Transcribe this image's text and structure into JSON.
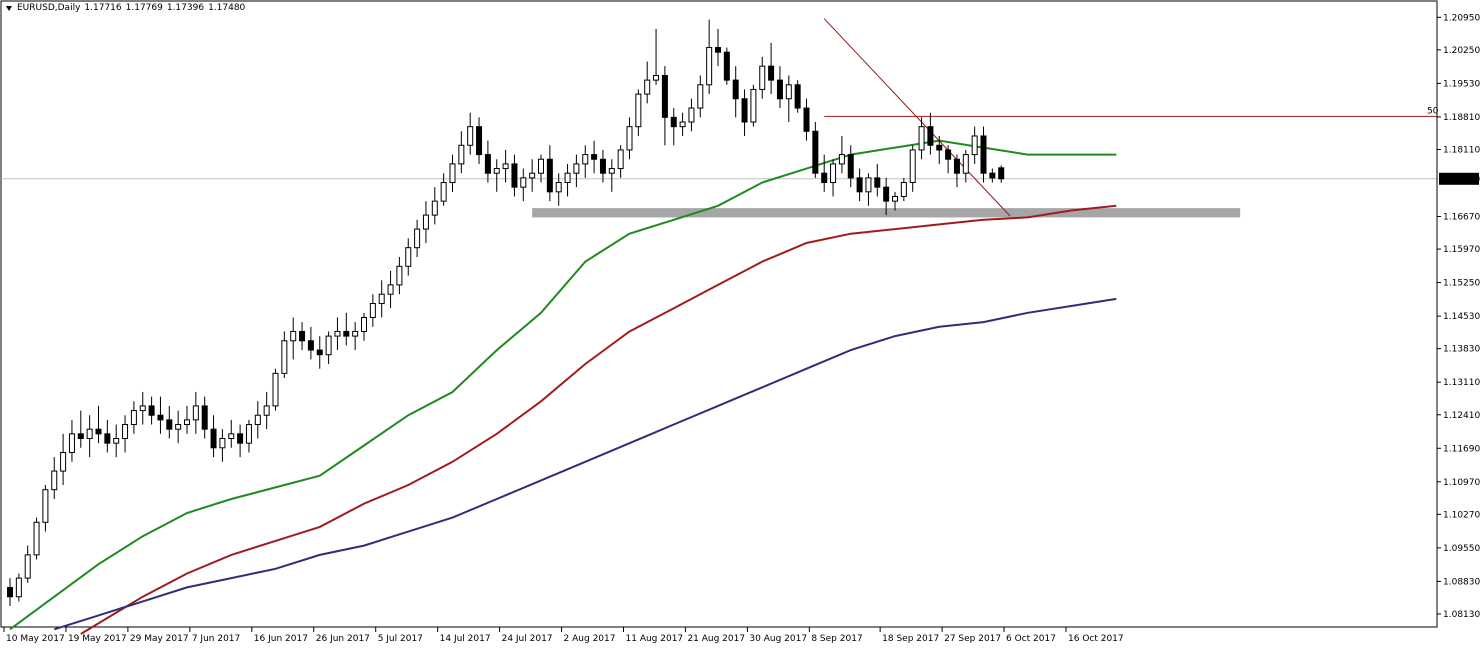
{
  "header": {
    "symbol": "EURUSD,Daily",
    "open": "1.17716",
    "high": "1.17769",
    "low": "1.17396",
    "close": "1.17480"
  },
  "current_price_label": "1.17480",
  "fib_label": "50",
  "chart_data": {
    "type": "candlestick",
    "title": "EURUSD,Daily",
    "xlabel": "",
    "ylabel": "",
    "ylim": [
      1.0785,
      1.213
    ],
    "y_ticks": [
      "1.20950",
      "1.20250",
      "1.19530",
      "1.18810",
      "1.18110",
      "1.17480",
      "1.16670",
      "1.15970",
      "1.15250",
      "1.14530",
      "1.13830",
      "1.13110",
      "1.12410",
      "1.11690",
      "1.10970",
      "1.10270",
      "1.09550",
      "1.08830",
      "1.08130"
    ],
    "x_ticks": [
      "10 May 2017",
      "19 May 2017",
      "29 May 2017",
      "7 Jun 2017",
      "16 Jun 2017",
      "26 Jun 2017",
      "5 Jul 2017",
      "14 Jul 2017",
      "24 Jul 2017",
      "2 Aug 2017",
      "11 Aug 2017",
      "21 Aug 2017",
      "30 Aug 2017",
      "8 Sep 2017",
      "18 Sep 2017",
      "27 Sep 2017",
      "6 Oct 2017",
      "16 Oct 2017"
    ],
    "x_tick_index": [
      0,
      7,
      14,
      21,
      28,
      35,
      42,
      49,
      56,
      63,
      70,
      77,
      84,
      91,
      99,
      106,
      113,
      120
    ],
    "colors": {
      "bull": "#ffffff",
      "bear": "#000000",
      "ma_fast": "#1f8a1f",
      "ma_mid": "#a01c1c",
      "ma_slow": "#2e2e7a",
      "fib_line": "#a01c1c",
      "support_zone": "#a6a6a6",
      "trend_line": "#8b1a1a",
      "price_line": "#c0c0c0"
    },
    "support_zone": {
      "from_index": 59,
      "to_index": 139,
      "low": 1.1665,
      "high": 1.1685
    },
    "fib_level": {
      "from_index": 92,
      "price": 1.1882
    },
    "trend_line": {
      "from_index": 92,
      "from_price": 1.2092,
      "to_index": 113,
      "to_price": 1.1668
    },
    "ma_fast": [
      [
        0,
        1.078
      ],
      [
        5,
        1.085
      ],
      [
        10,
        1.092
      ],
      [
        15,
        1.098
      ],
      [
        20,
        1.103
      ],
      [
        25,
        1.106
      ],
      [
        30,
        1.1085
      ],
      [
        35,
        1.111
      ],
      [
        40,
        1.1175
      ],
      [
        45,
        1.124
      ],
      [
        50,
        1.129
      ],
      [
        55,
        1.138
      ],
      [
        60,
        1.146
      ],
      [
        65,
        1.157
      ],
      [
        70,
        1.163
      ],
      [
        75,
        1.166
      ],
      [
        80,
        1.169
      ],
      [
        85,
        1.174
      ],
      [
        90,
        1.177
      ],
      [
        95,
        1.18
      ],
      [
        100,
        1.1815
      ],
      [
        105,
        1.183
      ],
      [
        110,
        1.1815
      ],
      [
        115,
        1.18
      ],
      [
        120,
        1.18
      ],
      [
        125,
        1.18
      ]
    ],
    "ma_mid": [
      [
        8,
        1.077
      ],
      [
        15,
        1.085
      ],
      [
        20,
        1.09
      ],
      [
        25,
        1.094
      ],
      [
        30,
        1.097
      ],
      [
        35,
        1.1
      ],
      [
        40,
        1.105
      ],
      [
        45,
        1.109
      ],
      [
        50,
        1.114
      ],
      [
        55,
        1.12
      ],
      [
        60,
        1.127
      ],
      [
        65,
        1.135
      ],
      [
        70,
        1.142
      ],
      [
        75,
        1.147
      ],
      [
        80,
        1.152
      ],
      [
        85,
        1.157
      ],
      [
        90,
        1.161
      ],
      [
        95,
        1.163
      ],
      [
        100,
        1.164
      ],
      [
        105,
        1.165
      ],
      [
        110,
        1.166
      ],
      [
        115,
        1.1665
      ],
      [
        120,
        1.168
      ],
      [
        125,
        1.169
      ]
    ],
    "ma_slow": [
      [
        5,
        1.078
      ],
      [
        10,
        1.081
      ],
      [
        15,
        1.084
      ],
      [
        20,
        1.087
      ],
      [
        25,
        1.089
      ],
      [
        30,
        1.091
      ],
      [
        35,
        1.094
      ],
      [
        40,
        1.096
      ],
      [
        45,
        1.099
      ],
      [
        50,
        1.102
      ],
      [
        55,
        1.106
      ],
      [
        60,
        1.11
      ],
      [
        65,
        1.114
      ],
      [
        70,
        1.118
      ],
      [
        75,
        1.122
      ],
      [
        80,
        1.126
      ],
      [
        85,
        1.13
      ],
      [
        90,
        1.134
      ],
      [
        95,
        1.138
      ],
      [
        100,
        1.141
      ],
      [
        105,
        1.143
      ],
      [
        110,
        1.144
      ],
      [
        115,
        1.146
      ],
      [
        120,
        1.1475
      ],
      [
        125,
        1.149
      ]
    ],
    "candles": [
      [
        1.087,
        1.089,
        1.083,
        1.085
      ],
      [
        1.085,
        1.09,
        1.084,
        1.089
      ],
      [
        1.089,
        1.096,
        1.088,
        1.094
      ],
      [
        1.094,
        1.102,
        1.093,
        1.101
      ],
      [
        1.101,
        1.109,
        1.099,
        1.108
      ],
      [
        1.108,
        1.115,
        1.106,
        1.112
      ],
      [
        1.112,
        1.12,
        1.109,
        1.116
      ],
      [
        1.116,
        1.123,
        1.114,
        1.12
      ],
      [
        1.12,
        1.125,
        1.117,
        1.119
      ],
      [
        1.119,
        1.124,
        1.115,
        1.121
      ],
      [
        1.121,
        1.126,
        1.118,
        1.12
      ],
      [
        1.12,
        1.123,
        1.116,
        1.118
      ],
      [
        1.118,
        1.122,
        1.115,
        1.119
      ],
      [
        1.119,
        1.124,
        1.116,
        1.122
      ],
      [
        1.122,
        1.127,
        1.12,
        1.125
      ],
      [
        1.125,
        1.129,
        1.122,
        1.126
      ],
      [
        1.126,
        1.128,
        1.122,
        1.124
      ],
      [
        1.124,
        1.128,
        1.12,
        1.123
      ],
      [
        1.123,
        1.126,
        1.119,
        1.121
      ],
      [
        1.121,
        1.125,
        1.118,
        1.122
      ],
      [
        1.122,
        1.126,
        1.12,
        1.123
      ],
      [
        1.123,
        1.129,
        1.12,
        1.126
      ],
      [
        1.126,
        1.128,
        1.119,
        1.121
      ],
      [
        1.121,
        1.124,
        1.115,
        1.117
      ],
      [
        1.117,
        1.121,
        1.114,
        1.119
      ],
      [
        1.119,
        1.123,
        1.117,
        1.12
      ],
      [
        1.12,
        1.122,
        1.115,
        1.118
      ],
      [
        1.118,
        1.123,
        1.116,
        1.122
      ],
      [
        1.122,
        1.127,
        1.119,
        1.124
      ],
      [
        1.124,
        1.129,
        1.121,
        1.126
      ],
      [
        1.126,
        1.134,
        1.125,
        1.133
      ],
      [
        1.133,
        1.142,
        1.132,
        1.14
      ],
      [
        1.14,
        1.145,
        1.136,
        1.142
      ],
      [
        1.142,
        1.144,
        1.138,
        1.14
      ],
      [
        1.14,
        1.143,
        1.136,
        1.138
      ],
      [
        1.138,
        1.141,
        1.134,
        1.137
      ],
      [
        1.137,
        1.142,
        1.135,
        1.141
      ],
      [
        1.141,
        1.145,
        1.138,
        1.142
      ],
      [
        1.142,
        1.146,
        1.139,
        1.141
      ],
      [
        1.141,
        1.144,
        1.138,
        1.142
      ],
      [
        1.142,
        1.146,
        1.14,
        1.145
      ],
      [
        1.145,
        1.15,
        1.143,
        1.148
      ],
      [
        1.148,
        1.153,
        1.145,
        1.15
      ],
      [
        1.15,
        1.155,
        1.147,
        1.152
      ],
      [
        1.152,
        1.158,
        1.15,
        1.156
      ],
      [
        1.156,
        1.162,
        1.154,
        1.16
      ],
      [
        1.16,
        1.166,
        1.158,
        1.164
      ],
      [
        1.164,
        1.17,
        1.161,
        1.167
      ],
      [
        1.167,
        1.173,
        1.165,
        1.17
      ],
      [
        1.17,
        1.176,
        1.169,
        1.174
      ],
      [
        1.174,
        1.18,
        1.172,
        1.178
      ],
      [
        1.178,
        1.185,
        1.176,
        1.182
      ],
      [
        1.182,
        1.189,
        1.18,
        1.186
      ],
      [
        1.186,
        1.188,
        1.178,
        1.18
      ],
      [
        1.18,
        1.183,
        1.174,
        1.176
      ],
      [
        1.176,
        1.179,
        1.172,
        1.177
      ],
      [
        1.177,
        1.181,
        1.174,
        1.178
      ],
      [
        1.178,
        1.18,
        1.171,
        1.173
      ],
      [
        1.173,
        1.177,
        1.17,
        1.175
      ],
      [
        1.175,
        1.179,
        1.172,
        1.176
      ],
      [
        1.176,
        1.18,
        1.174,
        1.179
      ],
      [
        1.179,
        1.182,
        1.17,
        1.172
      ],
      [
        1.172,
        1.176,
        1.169,
        1.174
      ],
      [
        1.174,
        1.178,
        1.171,
        1.176
      ],
      [
        1.176,
        1.18,
        1.173,
        1.178
      ],
      [
        1.178,
        1.182,
        1.175,
        1.18
      ],
      [
        1.18,
        1.183,
        1.176,
        1.179
      ],
      [
        1.179,
        1.181,
        1.174,
        1.176
      ],
      [
        1.176,
        1.179,
        1.172,
        1.177
      ],
      [
        1.177,
        1.182,
        1.175,
        1.181
      ],
      [
        1.181,
        1.188,
        1.179,
        1.186
      ],
      [
        1.186,
        1.194,
        1.184,
        1.193
      ],
      [
        1.193,
        1.2,
        1.191,
        1.196
      ],
      [
        1.196,
        1.207,
        1.195,
        1.197
      ],
      [
        1.197,
        1.199,
        1.182,
        1.188
      ],
      [
        1.188,
        1.19,
        1.182,
        1.186
      ],
      [
        1.186,
        1.189,
        1.184,
        1.187
      ],
      [
        1.187,
        1.192,
        1.185,
        1.19
      ],
      [
        1.19,
        1.197,
        1.188,
        1.195
      ],
      [
        1.195,
        1.209,
        1.193,
        1.203
      ],
      [
        1.203,
        1.207,
        1.199,
        1.202
      ],
      [
        1.202,
        1.203,
        1.195,
        1.196
      ],
      [
        1.196,
        1.199,
        1.188,
        1.192
      ],
      [
        1.192,
        1.194,
        1.184,
        1.187
      ],
      [
        1.187,
        1.195,
        1.186,
        1.194
      ],
      [
        1.194,
        1.201,
        1.192,
        1.199
      ],
      [
        1.199,
        1.204,
        1.193,
        1.196
      ],
      [
        1.196,
        1.199,
        1.19,
        1.192
      ],
      [
        1.192,
        1.197,
        1.187,
        1.195
      ],
      [
        1.195,
        1.196,
        1.189,
        1.19
      ],
      [
        1.19,
        1.192,
        1.183,
        1.185
      ],
      [
        1.185,
        1.187,
        1.175,
        1.176
      ],
      [
        1.176,
        1.18,
        1.172,
        1.174
      ],
      [
        1.174,
        1.179,
        1.171,
        1.178
      ],
      [
        1.178,
        1.184,
        1.176,
        1.18
      ],
      [
        1.18,
        1.182,
        1.173,
        1.175
      ],
      [
        1.175,
        1.177,
        1.17,
        1.172
      ],
      [
        1.172,
        1.176,
        1.169,
        1.175
      ],
      [
        1.175,
        1.178,
        1.171,
        1.173
      ],
      [
        1.173,
        1.175,
        1.167,
        1.17
      ],
      [
        1.17,
        1.172,
        1.168,
        1.171
      ],
      [
        1.171,
        1.175,
        1.17,
        1.174
      ],
      [
        1.174,
        1.182,
        1.172,
        1.181
      ],
      [
        1.181,
        1.188,
        1.179,
        1.186
      ],
      [
        1.186,
        1.189,
        1.18,
        1.182
      ],
      [
        1.182,
        1.184,
        1.178,
        1.181
      ],
      [
        1.181,
        1.182,
        1.176,
        1.179
      ],
      [
        1.179,
        1.18,
        1.173,
        1.176
      ],
      [
        1.176,
        1.181,
        1.174,
        1.18
      ],
      [
        1.18,
        1.186,
        1.178,
        1.184
      ],
      [
        1.184,
        1.186,
        1.174,
        1.176
      ],
      [
        1.176,
        1.177,
        1.174,
        1.175
      ],
      [
        1.17716,
        1.17769,
        1.17396,
        1.1748
      ]
    ]
  }
}
